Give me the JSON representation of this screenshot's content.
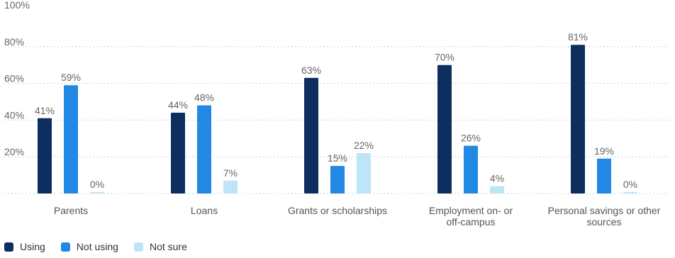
{
  "chart_data": {
    "type": "bar",
    "title": "",
    "xlabel": "",
    "ylabel": "",
    "ylim": [
      0,
      100
    ],
    "yticks": [
      "20%",
      "40%",
      "60%",
      "80%",
      "100%"
    ],
    "grid": true,
    "legend_position": "bottom-left",
    "categories": [
      [
        "Parents"
      ],
      [
        "Loans"
      ],
      [
        "Grants or scholarships"
      ],
      [
        "Employment on- or",
        "off-campus"
      ],
      [
        "Personal savings or other",
        "sources"
      ]
    ],
    "series": [
      {
        "name": "Using",
        "color": "#0d2f5f",
        "values": [
          41,
          44,
          63,
          70,
          81
        ],
        "labels": [
          "41%",
          "44%",
          "63%",
          "70%",
          "81%"
        ]
      },
      {
        "name": "Not using",
        "color": "#2189e3",
        "values": [
          59,
          48,
          15,
          26,
          19
        ],
        "labels": [
          "59%",
          "48%",
          "15%",
          "26%",
          "19%"
        ]
      },
      {
        "name": "Not sure",
        "color": "#bde4f7",
        "values": [
          0,
          7,
          22,
          4,
          0
        ],
        "labels": [
          "0%",
          "7%",
          "22%",
          "4%",
          "0%"
        ]
      }
    ]
  }
}
